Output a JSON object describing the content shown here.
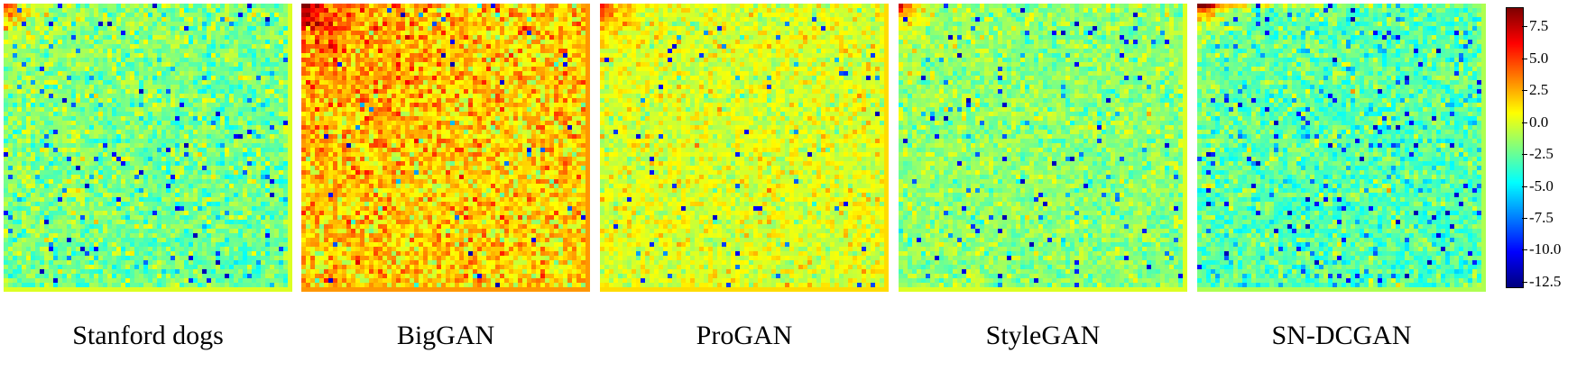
{
  "chart_data": {
    "type": "heatmap",
    "panels": [
      {
        "name": "Stanford dogs",
        "bias": -1.5,
        "hot_corner": 7.5,
        "noise": 1.3,
        "outlier_rate": 0.035,
        "lower_right_blue": 1.2
      },
      {
        "name": "BigGAN",
        "bias": 1.5,
        "hot_corner": 8.0,
        "noise": 1.6,
        "outlier_rate": 0.01,
        "lower_right_blue": 0.0
      },
      {
        "name": "ProGAN",
        "bias": 0.0,
        "hot_corner": 6.5,
        "noise": 1.1,
        "outlier_rate": 0.015,
        "lower_right_blue": 0.0
      },
      {
        "name": "StyleGAN",
        "bias": -1.5,
        "hot_corner": 8.5,
        "noise": 1.1,
        "outlier_rate": 0.03,
        "lower_right_blue": 0.3
      },
      {
        "name": "SN-DCGAN",
        "bias": -2.5,
        "hot_corner": 9.0,
        "noise": 1.3,
        "outlier_rate": 0.05,
        "lower_right_blue": 0.6
      }
    ],
    "grid_size": 64,
    "colorscale": "jet",
    "zlim": [
      -13.0,
      9.0
    ],
    "colorbar_ticks": [
      "7.5",
      "5.0",
      "2.5",
      "0.0",
      "-2.5",
      "-5.0",
      "-7.5",
      "-10.0",
      "-12.5"
    ],
    "colorbar_tick_values": [
      7.5,
      5.0,
      2.5,
      0.0,
      -2.5,
      -5.0,
      -7.5,
      -10.0,
      -12.5
    ],
    "legend_position": "right"
  }
}
